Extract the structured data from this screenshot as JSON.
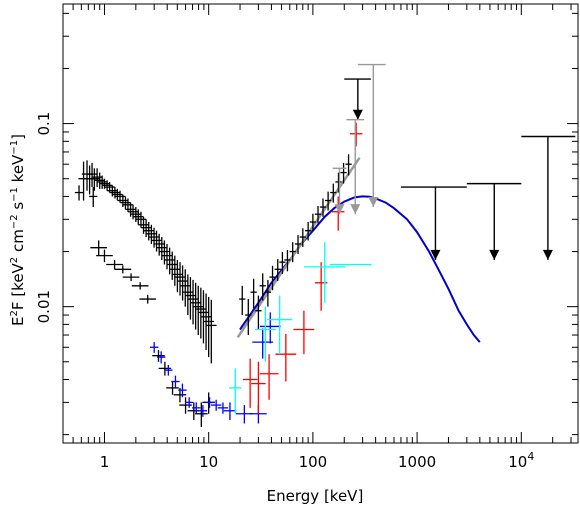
{
  "chart_data": {
    "type": "scatter",
    "title": "",
    "xlabel": "Energy [keV]",
    "ylabel_parts": {
      "lead": "E",
      "sup1": "2",
      "mid": "F [keV",
      "sup2": "2",
      "mid2": " cm",
      "sup3": "−2",
      "mid3": " s",
      "sup4": "−1",
      "mid4": " keV",
      "sup5": "−1",
      "tail": "]"
    },
    "xscale": "log",
    "yscale": "log",
    "xlim": [
      0.4,
      35000
    ],
    "ylim": [
      0.0018,
      0.45
    ],
    "x_ticks": [
      {
        "value": 1,
        "label": "1"
      },
      {
        "value": 10,
        "label": "10"
      },
      {
        "value": 100,
        "label": "100"
      },
      {
        "value": 1000,
        "label": "1000"
      }
    ],
    "x_tick_pow": {
      "value": 10000,
      "base": "10",
      "exp": "4"
    },
    "y_ticks": [
      {
        "value": 0.01,
        "label": "0.01"
      },
      {
        "value": 0.1,
        "label": "0.1"
      }
    ],
    "series": [
      {
        "color": "#000000",
        "style": "error-cross",
        "points": [
          [
            0.63,
            0.05,
            0.012,
            0.05
          ],
          [
            0.68,
            0.053,
            0.01,
            0.05
          ],
          [
            0.72,
            0.05,
            0.009,
            0.05
          ],
          [
            0.76,
            0.053,
            0.008,
            0.05
          ],
          [
            0.8,
            0.05,
            0.007,
            0.05
          ],
          [
            0.85,
            0.051,
            0.006,
            0.05
          ],
          [
            0.9,
            0.049,
            0.005,
            0.05
          ],
          [
            0.95,
            0.048,
            0.004,
            0.05
          ],
          [
            1.0,
            0.047,
            0.003,
            0.05
          ],
          [
            1.06,
            0.046,
            0.003,
            0.05
          ],
          [
            1.12,
            0.045,
            0.003,
            0.05
          ],
          [
            1.19,
            0.043,
            0.003,
            0.05
          ],
          [
            1.26,
            0.042,
            0.003,
            0.05
          ],
          [
            1.33,
            0.041,
            0.003,
            0.05
          ],
          [
            1.41,
            0.04,
            0.003,
            0.05
          ],
          [
            1.5,
            0.038,
            0.003,
            0.05
          ],
          [
            1.59,
            0.037,
            0.003,
            0.05
          ],
          [
            1.68,
            0.036,
            0.003,
            0.05
          ],
          [
            1.78,
            0.034,
            0.003,
            0.05
          ],
          [
            1.88,
            0.033,
            0.003,
            0.05
          ],
          [
            2.0,
            0.032,
            0.003,
            0.05
          ],
          [
            2.11,
            0.031,
            0.003,
            0.05
          ],
          [
            2.24,
            0.03,
            0.003,
            0.05
          ],
          [
            2.37,
            0.028,
            0.003,
            0.05
          ],
          [
            2.51,
            0.027,
            0.003,
            0.05
          ],
          [
            2.66,
            0.026,
            0.003,
            0.05
          ],
          [
            2.82,
            0.025,
            0.003,
            0.05
          ],
          [
            2.99,
            0.024,
            0.003,
            0.05
          ],
          [
            3.16,
            0.023,
            0.003,
            0.05
          ],
          [
            3.35,
            0.022,
            0.003,
            0.05
          ],
          [
            3.55,
            0.021,
            0.003,
            0.05
          ],
          [
            3.76,
            0.02,
            0.003,
            0.05
          ],
          [
            3.98,
            0.019,
            0.003,
            0.05
          ],
          [
            4.22,
            0.018,
            0.003,
            0.05
          ],
          [
            4.47,
            0.017,
            0.003,
            0.05
          ],
          [
            4.73,
            0.016,
            0.003,
            0.05
          ],
          [
            5.01,
            0.015,
            0.003,
            0.05
          ],
          [
            5.31,
            0.0145,
            0.003,
            0.05
          ],
          [
            5.62,
            0.0138,
            0.003,
            0.05
          ],
          [
            5.96,
            0.013,
            0.003,
            0.05
          ],
          [
            6.31,
            0.012,
            0.003,
            0.05
          ],
          [
            6.68,
            0.0115,
            0.003,
            0.05
          ],
          [
            7.08,
            0.011,
            0.003,
            0.05
          ],
          [
            7.5,
            0.0105,
            0.003,
            0.05
          ],
          [
            7.94,
            0.01,
            0.003,
            0.05
          ],
          [
            8.41,
            0.0097,
            0.003,
            0.05
          ],
          [
            8.91,
            0.0093,
            0.003,
            0.05
          ],
          [
            9.44,
            0.0088,
            0.003,
            0.05
          ],
          [
            10.0,
            0.0083,
            0.003,
            0.05
          ],
          [
            10.6,
            0.0079,
            0.003,
            0.05
          ],
          [
            0.57,
            0.042,
            0.004,
            0.04
          ],
          [
            0.78,
            0.04,
            0.005,
            0.04
          ],
          [
            0.88,
            0.021,
            0.002,
            0.08
          ],
          [
            1.0,
            0.019,
            0.0015,
            0.08
          ],
          [
            1.25,
            0.017,
            0.001,
            0.08
          ],
          [
            1.5,
            0.016,
            0.0008,
            0.08
          ],
          [
            1.8,
            0.0145,
            0.0007,
            0.08
          ],
          [
            2.2,
            0.013,
            0.0006,
            0.08
          ],
          [
            2.6,
            0.011,
            0.0006,
            0.08
          ],
          [
            3.3,
            0.0054,
            0.0004,
            0.06
          ],
          [
            3.8,
            0.0046,
            0.0004,
            0.06
          ],
          [
            4.5,
            0.0036,
            0.0003,
            0.06
          ],
          [
            5.3,
            0.0033,
            0.0003,
            0.06
          ],
          [
            6.0,
            0.0029,
            0.0003,
            0.06
          ],
          [
            7.2,
            0.0027,
            0.0003,
            0.06
          ],
          [
            8.5,
            0.0026,
            0.0004,
            0.06
          ],
          [
            10.0,
            0.003,
            0.0004,
            0.06
          ]
        ]
      },
      {
        "color": "#0000ff",
        "style": "error-cross",
        "points": [
          [
            3.0,
            0.006,
            0.0004,
            0.04
          ],
          [
            3.5,
            0.0053,
            0.0004,
            0.04
          ],
          [
            4.1,
            0.0045,
            0.0003,
            0.04
          ],
          [
            4.8,
            0.0039,
            0.0003,
            0.04
          ],
          [
            5.6,
            0.0035,
            0.0003,
            0.04
          ],
          [
            6.5,
            0.003,
            0.0002,
            0.04
          ],
          [
            7.6,
            0.0028,
            0.0002,
            0.04
          ],
          [
            8.8,
            0.0027,
            0.0002,
            0.04
          ],
          [
            10.2,
            0.003,
            0.0002,
            0.05
          ],
          [
            11.8,
            0.0029,
            0.0002,
            0.05
          ],
          [
            13.7,
            0.0028,
            0.0002,
            0.05
          ],
          [
            16.0,
            0.0027,
            0.0003,
            0.06
          ],
          [
            22.0,
            0.0026,
            0.0003,
            0.08
          ],
          [
            30.0,
            0.0026,
            0.0003,
            0.08
          ],
          [
            33.0,
            0.0064,
            0.0012,
            0.1
          ],
          [
            39.0,
            0.0078,
            0.0015,
            0.1
          ]
        ]
      },
      {
        "color": "#000000",
        "style": "error-cross",
        "points": [
          [
            21.0,
            0.011,
            0.002,
            0.03
          ],
          [
            24.0,
            0.009,
            0.002,
            0.03
          ],
          [
            27.0,
            0.012,
            0.0022,
            0.03
          ],
          [
            30.0,
            0.0095,
            0.002,
            0.03
          ],
          [
            33.0,
            0.013,
            0.0022,
            0.03
          ],
          [
            37.0,
            0.012,
            0.002,
            0.03
          ],
          [
            41.0,
            0.0145,
            0.0022,
            0.03
          ],
          [
            46.0,
            0.016,
            0.0022,
            0.03
          ],
          [
            51.0,
            0.0175,
            0.0024,
            0.03
          ],
          [
            57.0,
            0.018,
            0.0024,
            0.03
          ],
          [
            64.0,
            0.02,
            0.0025,
            0.03
          ],
          [
            72.0,
            0.022,
            0.0026,
            0.03
          ],
          [
            80.0,
            0.024,
            0.0028,
            0.03
          ],
          [
            90.0,
            0.026,
            0.003,
            0.03
          ],
          [
            100.0,
            0.029,
            0.0032,
            0.03
          ],
          [
            112.0,
            0.032,
            0.0035,
            0.03
          ],
          [
            125.0,
            0.035,
            0.004,
            0.03
          ],
          [
            140.0,
            0.038,
            0.0045,
            0.03
          ],
          [
            157.0,
            0.042,
            0.005,
            0.03
          ],
          [
            176.0,
            0.048,
            0.006,
            0.03
          ],
          [
            197.0,
            0.054,
            0.007,
            0.03
          ],
          [
            220.0,
            0.06,
            0.008,
            0.03
          ]
        ]
      },
      {
        "color": "#ff0000",
        "style": "error-cross",
        "points": [
          [
            25.0,
            0.004,
            0.0012,
            0.07
          ],
          [
            30.0,
            0.0038,
            0.0012,
            0.07
          ],
          [
            38.0,
            0.0043,
            0.0012,
            0.09
          ],
          [
            55.0,
            0.0055,
            0.0016,
            0.1
          ],
          [
            82.0,
            0.0075,
            0.002,
            0.1
          ],
          [
            120.0,
            0.0135,
            0.004,
            0.06
          ],
          [
            175.0,
            0.033,
            0.007,
            0.06
          ],
          [
            260.0,
            0.088,
            0.013,
            0.06
          ]
        ]
      },
      {
        "color": "#00ffff",
        "style": "error-cross",
        "points": [
          [
            18.0,
            0.0036,
            0.001,
            0.06
          ],
          [
            35.0,
            0.0075,
            0.0025,
            0.1
          ],
          [
            48.0,
            0.0085,
            0.003,
            0.12
          ],
          [
            130.0,
            0.0165,
            0.006,
            0.2
          ],
          [
            230.0,
            0.017,
            0.0,
            0.2
          ]
        ]
      }
    ],
    "upper_limits": [
      {
        "color": "#000000",
        "x": 270,
        "y": 0.175,
        "xlo": 200,
        "xhi": 360,
        "arrow_to": 0.105
      },
      {
        "color": "#999999",
        "x": 380,
        "y": 0.21,
        "xlo": 270,
        "xhi": 500,
        "arrow_to": 0.035
      },
      {
        "color": "#999999",
        "x": 255,
        "y": 0.105,
        "xlo": 210,
        "xhi": 310,
        "arrow_to": 0.032
      },
      {
        "color": "#999999",
        "x": 180,
        "y": 0.057,
        "xlo": 155,
        "xhi": 210,
        "arrow_to": 0.032
      },
      {
        "color": "#000000",
        "x": 1500,
        "y": 0.045,
        "xlo": 700,
        "xhi": 3000,
        "arrow_to": 0.018
      },
      {
        "color": "#000000",
        "x": 5500,
        "y": 0.047,
        "xlo": 3000,
        "xhi": 10000,
        "arrow_to": 0.018
      },
      {
        "color": "#000000",
        "x": 18000,
        "y": 0.085,
        "xlo": 10000,
        "xhi": 33000,
        "arrow_to": 0.018
      }
    ],
    "curves": [
      {
        "color": "#0000cc",
        "label": "",
        "x": [
          20,
          30,
          40,
          60,
          80,
          100,
          130,
          160,
          200,
          250,
          300,
          350,
          400,
          500,
          600,
          800,
          1000,
          1300,
          1600,
          2000,
          2500,
          3000,
          3500,
          4000
        ],
        "y": [
          0.0075,
          0.0105,
          0.0135,
          0.018,
          0.0225,
          0.026,
          0.031,
          0.0345,
          0.0375,
          0.0395,
          0.04,
          0.0398,
          0.039,
          0.037,
          0.0345,
          0.03,
          0.0255,
          0.02,
          0.016,
          0.0125,
          0.0095,
          0.008,
          0.007,
          0.0064
        ]
      },
      {
        "color": "#999999",
        "label": "",
        "x": [
          19,
          280
        ],
        "y": [
          0.0068,
          0.065
        ]
      }
    ],
    "grid": false,
    "legend": "none"
  }
}
